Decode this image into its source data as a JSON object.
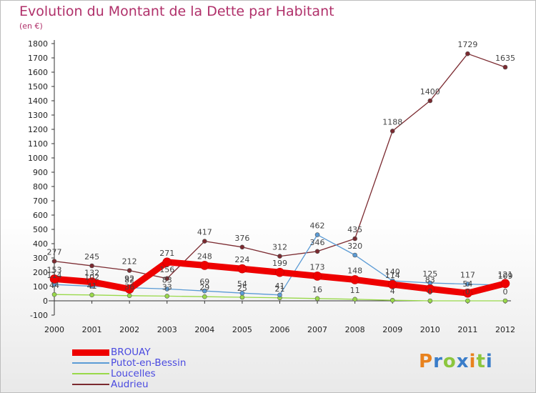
{
  "chart_data": {
    "type": "line",
    "title": "Evolution du Montant de la Dette par Habitant",
    "subtitle": "(en €)",
    "x": [
      "2000",
      "2001",
      "2002",
      "2003",
      "2004",
      "2005",
      "2006",
      "2007",
      "2008",
      "2009",
      "2010",
      "2011",
      "2012"
    ],
    "ylim": [
      -100,
      1800
    ],
    "yticks": [
      -100,
      0,
      100,
      200,
      300,
      400,
      500,
      600,
      700,
      800,
      900,
      1000,
      1100,
      1200,
      1300,
      1400,
      1500,
      1600,
      1700,
      1800
    ],
    "grid": false,
    "legend_position": "bottom-left",
    "series": [
      {
        "name": "BROUAY",
        "color": "#ee0000",
        "values": [
          153,
          132,
          82,
          271,
          248,
          224,
          199,
          173,
          148,
          114,
          83,
          54,
          121
        ]
      },
      {
        "name": "Putot-en-Bessin",
        "color": "#5b9bd5",
        "values": [
          114,
          102,
          92,
          83,
          69,
          54,
          41,
          462,
          320,
          140,
          125,
          117,
          109
        ]
      },
      {
        "name": "Loucelles",
        "color": "#99d94a",
        "values": [
          44,
          41,
          36,
          33,
          29,
          25,
          21,
          16,
          11,
          4,
          0,
          0,
          0
        ]
      },
      {
        "name": "Audrieu",
        "color": "#7b2a30",
        "values": [
          277,
          245,
          212,
          156,
          417,
          376,
          312,
          346,
          435,
          1188,
          1400,
          1729,
          1635
        ]
      }
    ]
  },
  "logo_text": "Proxiti"
}
